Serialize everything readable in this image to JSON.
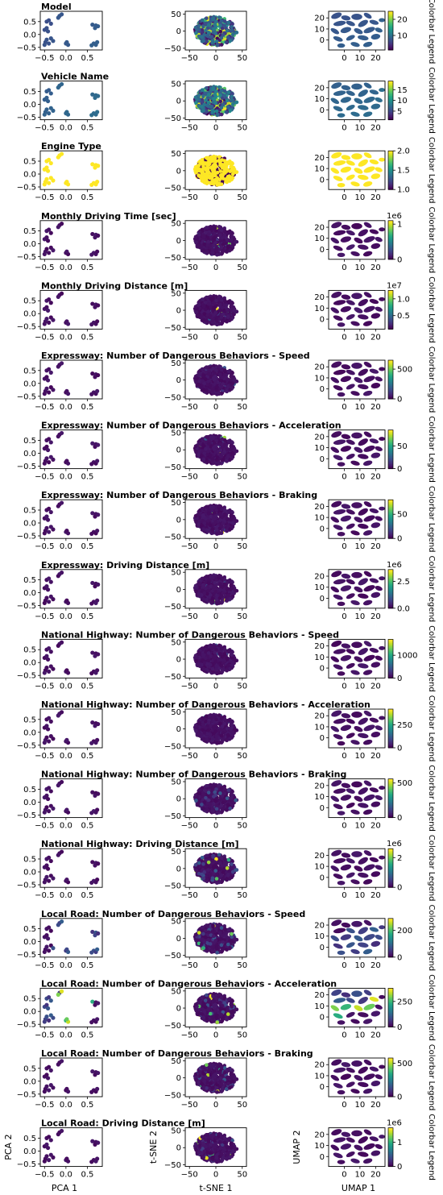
{
  "chart_data": {
    "type": "scatter",
    "axes": {
      "pca": {
        "xlabel": "PCA 1",
        "ylabel": "PCA 2",
        "xlim": [
          -0.6,
          0.85
        ],
        "ylim": [
          -0.6,
          0.9
        ],
        "xticks": [
          -0.5,
          0.0,
          0.5
        ],
        "xtick_labels": [
          "−0.5",
          "0.0",
          "0.5"
        ],
        "yticks": [
          -0.5,
          0.0,
          0.5
        ],
        "ytick_labels": [
          "−0.5",
          "0.0",
          "0.5"
        ]
      },
      "tsne": {
        "xlabel": "t-SNE 1",
        "ylabel": "t-SNE 2",
        "xlim": [
          -58,
          58
        ],
        "ylim": [
          -55,
          58
        ],
        "xticks": [
          -50,
          0,
          50
        ],
        "xtick_labels": [
          "−50",
          "0",
          "50"
        ],
        "yticks": [
          -50,
          0,
          50
        ],
        "ytick_labels": [
          "−50",
          "0",
          "50"
        ]
      },
      "umap": {
        "xlabel": "UMAP 1",
        "ylabel": "UMAP 2",
        "xlim": [
          -10,
          26
        ],
        "ylim": [
          -9,
          26
        ],
        "xticks": [
          0,
          10,
          20
        ],
        "xtick_labels": [
          "0",
          "10",
          "20"
        ],
        "yticks": [
          0,
          10,
          20
        ],
        "ytick_labels": [
          "0",
          "10",
          "20"
        ]
      }
    },
    "colormap": "viridis",
    "colorbar_label": "Colorbar Legend",
    "rows": [
      {
        "title": "Model",
        "categorical": true,
        "cmin": 1,
        "cmax": 25,
        "offset": "",
        "cticks": [
          10,
          20
        ],
        "ctick_labels": [
          "10",
          "20"
        ]
      },
      {
        "title": "Vehicle Name",
        "categorical": true,
        "cmin": 1,
        "cmax": 19,
        "offset": "",
        "cticks": [
          5,
          10,
          15
        ],
        "ctick_labels": [
          "5",
          "10",
          "15"
        ]
      },
      {
        "title": "Engine Type",
        "binary": true,
        "cmin": 1.0,
        "cmax": 2.0,
        "offset": "",
        "cticks": [
          1.0,
          1.5,
          2.0
        ],
        "ctick_labels": [
          "1.0",
          "1.5",
          "2.0"
        ]
      },
      {
        "title": "Monthly Driving Time [sec]",
        "cmin": 0,
        "cmax": 1.1,
        "offset": "1e6",
        "cticks": [
          0,
          1
        ],
        "ctick_labels": [
          "0",
          "1"
        ]
      },
      {
        "title": "Monthly Driving Distance [m]",
        "cmin": 0.1,
        "cmax": 1.25,
        "offset": "1e7",
        "cticks": [
          0.5,
          1.0
        ],
        "ctick_labels": [
          "0.5",
          "1.0"
        ]
      },
      {
        "title": "Expressway: Number of Dangerous Behaviors - Speed",
        "cmin": 0,
        "cmax": 650,
        "offset": "",
        "cticks": [
          0,
          500
        ],
        "ctick_labels": [
          "0",
          "500"
        ]
      },
      {
        "title": "Expressway: Number of Dangerous Behaviors - Acceleration",
        "cmin": 0,
        "cmax": 85,
        "offset": "",
        "cticks": [
          0,
          50
        ],
        "ctick_labels": [
          "0",
          "50"
        ]
      },
      {
        "title": "Expressway: Number of Dangerous Behaviors - Braking",
        "cmin": 0,
        "cmax": 80,
        "offset": "",
        "cticks": [
          0,
          50
        ],
        "ctick_labels": [
          "0",
          "50"
        ]
      },
      {
        "title": "Expressway: Driving Distance [m]",
        "cmin": 0,
        "cmax": 3.6,
        "offset": "1e6",
        "cticks": [
          0.0,
          2.5
        ],
        "ctick_labels": [
          "0.0",
          "2.5"
        ]
      },
      {
        "title": "National Highway: Number of Dangerous Behaviors - Speed",
        "cmin": 0,
        "cmax": 1700,
        "offset": "",
        "cticks": [
          0,
          1000
        ],
        "ctick_labels": [
          "0",
          "1000"
        ]
      },
      {
        "title": "National Highway: Number of Dangerous Behaviors - Acceleration",
        "cmin": 0,
        "cmax": 420,
        "offset": "",
        "cticks": [
          0,
          250
        ],
        "ctick_labels": [
          "0",
          "250"
        ]
      },
      {
        "title": "National Highway: Number of Dangerous Behaviors - Braking",
        "cmin": 0,
        "cmax": 560,
        "offset": "",
        "cticks": [
          0,
          500
        ],
        "ctick_labels": [
          "0",
          "500"
        ]
      },
      {
        "title": "National Highway: Driving Distance [m]",
        "cmin": 0,
        "cmax": 2.6,
        "offset": "1e6",
        "cticks": [
          0,
          2
        ],
        "ctick_labels": [
          "0",
          "2"
        ]
      },
      {
        "title": "Local Road: Number of Dangerous Behaviors - Speed",
        "cmin": 0,
        "cmax": 290,
        "offset": "",
        "cticks": [
          0,
          200
        ],
        "ctick_labels": [
          "0",
          "200"
        ]
      },
      {
        "title": "Local Road: Number of Dangerous Behaviors - Acceleration",
        "cmin": 0,
        "cmax": 380,
        "offset": "",
        "cticks": [
          0,
          250
        ],
        "ctick_labels": [
          "0",
          "250"
        ]
      },
      {
        "title": "Local Road: Number of Dangerous Behaviors - Braking",
        "cmin": 0,
        "cmax": 580,
        "offset": "",
        "cticks": [
          0,
          500
        ],
        "ctick_labels": [
          "0",
          "500"
        ]
      },
      {
        "title": "Local Road: Driving Distance [m]",
        "cmin": 0,
        "cmax": 1.6,
        "offset": "1e6",
        "cticks": [
          0,
          1
        ],
        "ctick_labels": [
          "0",
          "1"
        ]
      }
    ],
    "pca_points": [
      [
        -0.45,
        0.5
      ],
      [
        -0.4,
        0.55
      ],
      [
        -0.35,
        0.42
      ],
      [
        -0.5,
        0.18
      ],
      [
        -0.45,
        0.25
      ],
      [
        -0.42,
        0.12
      ],
      [
        -0.48,
        -0.3
      ],
      [
        -0.4,
        -0.35
      ],
      [
        -0.45,
        -0.2
      ],
      [
        -0.5,
        -0.4
      ],
      [
        -0.35,
        -0.15
      ],
      [
        -0.3,
        -0.25
      ],
      [
        -0.15,
        0.72
      ],
      [
        -0.1,
        0.78
      ],
      [
        -0.18,
        0.65
      ],
      [
        0.0,
        -0.35
      ],
      [
        0.05,
        -0.4
      ],
      [
        0.02,
        -0.3
      ],
      [
        0.62,
        0.38
      ],
      [
        0.7,
        0.35
      ],
      [
        0.68,
        0.25
      ],
      [
        0.75,
        0.32
      ],
      [
        0.65,
        -0.35
      ],
      [
        0.7,
        -0.4
      ],
      [
        0.73,
        -0.3
      ],
      [
        0.6,
        -0.42
      ]
    ],
    "umap_blobs": [
      [
        -5,
        22,
        3.5,
        2.5,
        -20
      ],
      [
        1,
        20,
        3,
        2.2,
        10
      ],
      [
        8,
        21,
        3.5,
        2.8,
        0
      ],
      [
        15,
        22,
        2.8,
        2,
        30
      ],
      [
        -3,
        15,
        4,
        2.2,
        -10
      ],
      [
        4,
        15,
        3,
        2,
        20
      ],
      [
        12,
        15,
        3.5,
        2.5,
        -30
      ],
      [
        19,
        16,
        3,
        2,
        15
      ],
      [
        -6,
        8,
        3,
        2,
        30
      ],
      [
        1,
        9,
        3.5,
        2.5,
        -15
      ],
      [
        9,
        8,
        3,
        2.2,
        25
      ],
      [
        16,
        9,
        3.8,
        2.4,
        -20
      ],
      [
        -4,
        1,
        3.2,
        2,
        20
      ],
      [
        4,
        2,
        3,
        2,
        -25
      ],
      [
        12,
        2,
        3.5,
        2.2,
        10
      ],
      [
        20,
        3,
        3,
        2.5,
        -10
      ],
      [
        -2,
        -5,
        2.5,
        2,
        0
      ],
      [
        7,
        -4,
        3,
        2,
        15
      ],
      [
        15,
        -4,
        3,
        2.2,
        -15
      ],
      [
        22,
        9,
        2.5,
        2,
        20
      ],
      [
        24,
        18,
        2,
        1.8,
        0
      ]
    ],
    "notes": [
      "t-SNE and UMAP panels are dense clouds of colored points; most non-categorical rows are dark purple with a few bright outliers."
    ]
  }
}
